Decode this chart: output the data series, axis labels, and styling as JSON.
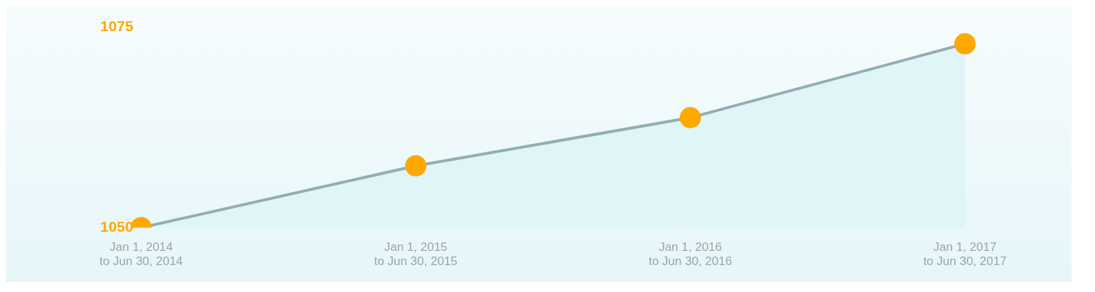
{
  "chart_data": {
    "type": "area",
    "categories": [
      "Jan 1, 2014\nto Jun 30, 2014",
      "Jan 1, 2015\nto Jun 30, 2015",
      "Jan 1, 2016\nto Jun 30, 2016",
      "Jan 1, 2017\nto Jun 30, 2017"
    ],
    "series": [
      {
        "color": "#93aeb0",
        "values": [
          1050,
          1057.7,
          1063.7,
          1072.9
        ]
      }
    ],
    "ylim": [
      1050,
      1075
    ],
    "yticks": [
      1050,
      1075
    ],
    "grid": false,
    "legend": false,
    "marker": "circle",
    "line_style": "solid"
  }
}
